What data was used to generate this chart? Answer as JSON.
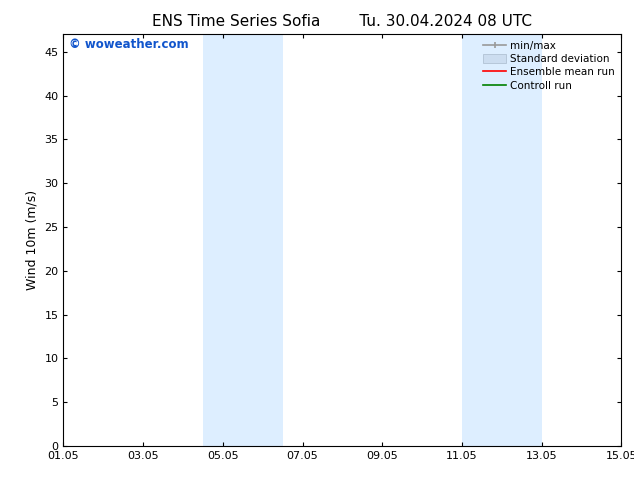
{
  "title_left": "ENS Time Series Sofia",
  "title_right": "Tu. 30.04.2024 08 UTC",
  "ylabel": "Wind 10m (m/s)",
  "xlim_num": [
    0,
    14
  ],
  "ylim": [
    0,
    47
  ],
  "yticks": [
    0,
    5,
    10,
    15,
    20,
    25,
    30,
    35,
    40,
    45
  ],
  "xtick_labels": [
    "01.05",
    "03.05",
    "05.05",
    "07.05",
    "09.05",
    "11.05",
    "13.05",
    "15.05"
  ],
  "xtick_positions": [
    0,
    2,
    4,
    6,
    8,
    10,
    12,
    14
  ],
  "shaded_bands": [
    {
      "x_start": 3.5,
      "x_end": 5.5,
      "color": "#ddeeff"
    },
    {
      "x_start": 10.0,
      "x_end": 12.0,
      "color": "#ddeeff"
    }
  ],
  "watermark_text": "© woweather.com",
  "watermark_color": "#1155cc",
  "legend_entries": [
    {
      "label": "min/max",
      "color": "#999999",
      "lw": 1.2
    },
    {
      "label": "Standard deviation",
      "color": "#ccddf0",
      "lw": 8
    },
    {
      "label": "Ensemble mean run",
      "color": "#ff0000",
      "lw": 1.2
    },
    {
      "label": "Controll run",
      "color": "#008000",
      "lw": 1.2
    }
  ],
  "bg_color": "#ffffff",
  "title_fontsize": 11,
  "tick_fontsize": 8,
  "ylabel_fontsize": 9,
  "legend_fontsize": 7.5
}
